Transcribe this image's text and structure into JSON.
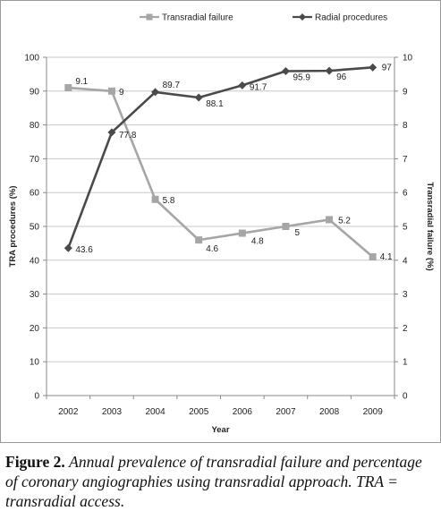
{
  "chart_data": {
    "type": "line",
    "categories": [
      "2002",
      "2003",
      "2004",
      "2005",
      "2006",
      "2007",
      "2008",
      "2009"
    ],
    "xlabel": "Year",
    "ylabel_left": "TRA procedures (%)",
    "ylabel_right": "Transradial failure (%)",
    "ylim_left": [
      0,
      100
    ],
    "ylim_right": [
      0,
      10
    ],
    "yticks_left": [
      "0",
      "10",
      "20",
      "30",
      "40",
      "50",
      "60",
      "70",
      "80",
      "90",
      "100"
    ],
    "yticks_right": [
      "0",
      "1",
      "2",
      "3",
      "4",
      "5",
      "6",
      "7",
      "8",
      "9",
      "10"
    ],
    "legend_position": "top",
    "series": [
      {
        "name": "Transradial failure",
        "axis": "right",
        "marker": "square",
        "color": "#a6a6a6",
        "values": [
          9.1,
          9,
          5.8,
          4.6,
          4.8,
          5,
          5.2,
          4.1
        ],
        "labels": [
          "9.1",
          "9",
          "5.8",
          "4.6",
          "4.8",
          "5",
          "5.2",
          "4.1"
        ]
      },
      {
        "name": "Radial procedures",
        "axis": "left",
        "marker": "diamond",
        "color": "#4a4a4a",
        "values": [
          43.6,
          77.8,
          89.7,
          88.1,
          91.7,
          95.9,
          96,
          97
        ],
        "labels": [
          "43.6",
          "77.8",
          "89.7",
          "88.1",
          "91.7",
          "95.9",
          "96",
          "97"
        ]
      }
    ]
  },
  "caption": {
    "lead": "Figure 2.",
    "body": "Annual prevalence of transradial failure and percentage of coronary angiographies using transradial approach. TRA = transradial access."
  }
}
